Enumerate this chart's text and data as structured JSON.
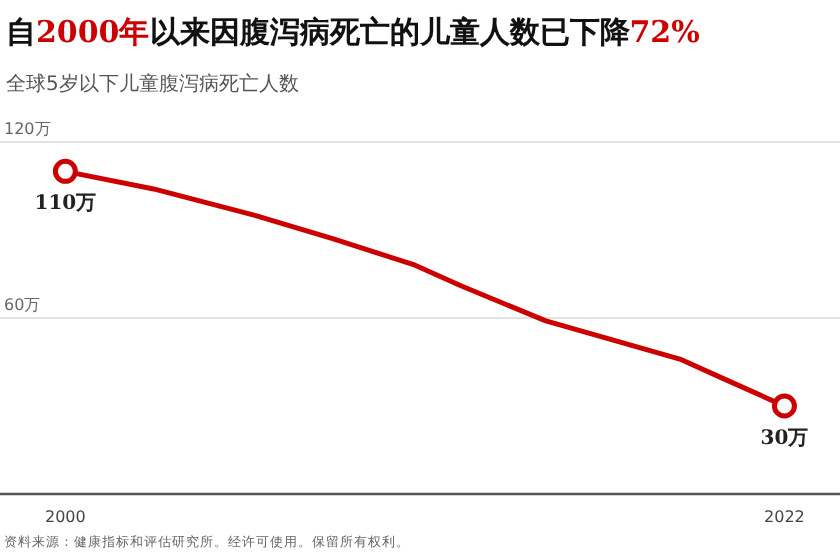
{
  "chart_data": {
    "type": "line",
    "title": "自2000年以来因腹泻病死亡的儿童人数已下降72%",
    "subtitle": "全球5岁以下儿童腹泻病死亡人数",
    "x": [
      2000,
      2002.7,
      2005.8,
      2008.2,
      2010.7,
      2012.1,
      2014.7,
      2018.8,
      2020.2,
      2022
    ],
    "series": [
      {
        "color": "#cc0000",
        "values": [
          110,
          104,
          95,
          87,
          78,
          71,
          59,
          46,
          39,
          30
        ],
        "value_labels": [
          "110万",
          null,
          null,
          null,
          null,
          null,
          null,
          null,
          null,
          "30万"
        ]
      }
    ],
    "xlim": [
      1998,
      2023.7
    ],
    "xticks": [
      2000,
      2022
    ],
    "ylim": [
      0,
      120
    ],
    "yticks": [
      {
        "value": 0,
        "label": null
      },
      {
        "value": 60,
        "label": "60万"
      },
      {
        "value": 120,
        "label": "120万"
      }
    ],
    "grid": "y",
    "annotations": [
      "资料来源：健康指标和评估研究所。经许可使用。保留所有权利。"
    ]
  }
}
